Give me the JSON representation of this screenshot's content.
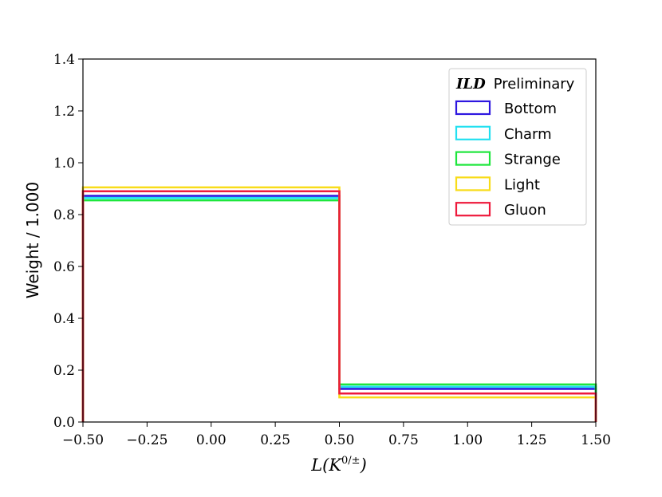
{
  "chart_data": {
    "type": "line",
    "subtype": "step-histogram",
    "xlabel": "L(K^{0/±})",
    "ylabel": "Weight / 1.000",
    "xlim": [
      -0.5,
      1.5
    ],
    "ylim": [
      0.0,
      1.4
    ],
    "grid": false,
    "bin_edges": [
      -0.5,
      0.5,
      1.5
    ],
    "x_ticks": [
      "−0.50",
      "−0.25",
      "0.00",
      "0.25",
      "0.50",
      "0.75",
      "1.00",
      "1.25",
      "1.50"
    ],
    "x_tick_values": [
      -0.5,
      -0.25,
      0.0,
      0.25,
      0.5,
      0.75,
      1.0,
      1.25,
      1.5
    ],
    "y_ticks": [
      "0.0",
      "0.2",
      "0.4",
      "0.6",
      "0.8",
      "1.0",
      "1.2",
      "1.4"
    ],
    "y_tick_values": [
      0.0,
      0.2,
      0.4,
      0.6,
      0.8,
      1.0,
      1.2,
      1.4
    ],
    "legend": {
      "placement": "top-right",
      "title_bold": "ILD",
      "title_rest": "Preliminary"
    },
    "series": [
      {
        "name": "Bottom",
        "color": "#2e17e0",
        "values": [
          0.872,
          0.128
        ]
      },
      {
        "name": "Charm",
        "color": "#22e0f0",
        "values": [
          0.864,
          0.136
        ]
      },
      {
        "name": "Strange",
        "color": "#1ee63c",
        "values": [
          0.855,
          0.145
        ]
      },
      {
        "name": "Light",
        "color": "#f8dc1a",
        "values": [
          0.905,
          0.095
        ]
      },
      {
        "name": "Gluon",
        "color": "#ee1a3c",
        "values": [
          0.89,
          0.11
        ]
      }
    ]
  }
}
